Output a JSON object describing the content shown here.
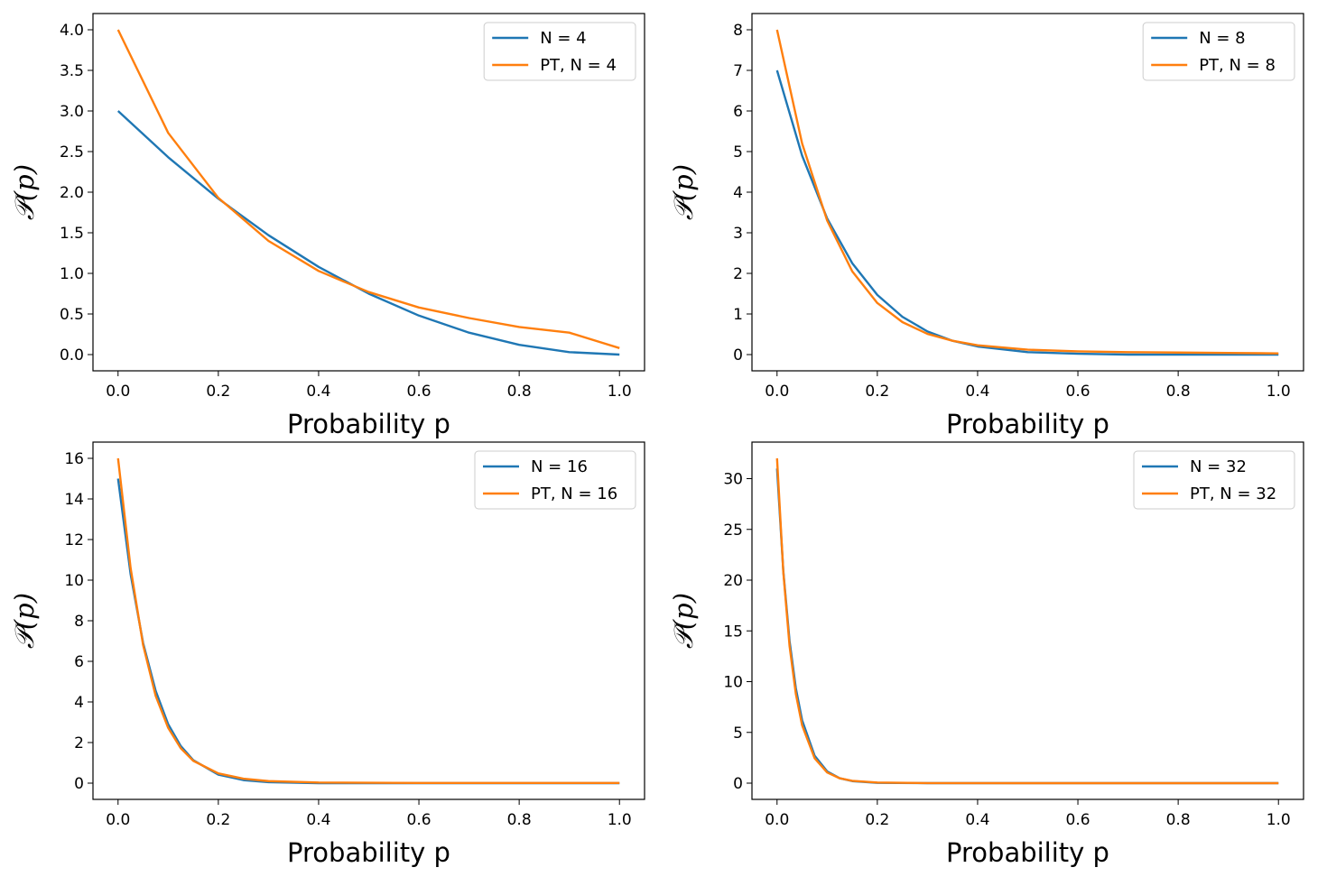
{
  "chart_data": [
    {
      "type": "line",
      "title": "",
      "xlabel": "Probability p",
      "ylabel": "𝒫(p)",
      "xlim": [
        -0.05,
        1.05
      ],
      "ylim": [
        -0.2,
        4.2
      ],
      "xticks": [
        0.0,
        0.2,
        0.4,
        0.6,
        0.8,
        1.0
      ],
      "xtick_labels": [
        "0.0",
        "0.2",
        "0.4",
        "0.6",
        "0.8",
        "1.0"
      ],
      "yticks": [
        0.0,
        0.5,
        1.0,
        1.5,
        2.0,
        2.5,
        3.0,
        3.5,
        4.0
      ],
      "ytick_labels": [
        "0.0",
        "0.5",
        "1.0",
        "1.5",
        "2.0",
        "2.5",
        "3.0",
        "3.5",
        "4.0"
      ],
      "grid": false,
      "legend_position": "top-right",
      "x": [
        0.0,
        0.1,
        0.2,
        0.3,
        0.4,
        0.5,
        0.6,
        0.7,
        0.8,
        0.9,
        1.0
      ],
      "series": [
        {
          "name": "N = 4",
          "color": "#1f77b4",
          "values": [
            3.0,
            2.43,
            1.92,
            1.47,
            1.08,
            0.75,
            0.48,
            0.27,
            0.12,
            0.03,
            0.0
          ]
        },
        {
          "name": "PT, N = 4",
          "color": "#ff7f0e",
          "values": [
            4.0,
            2.73,
            1.93,
            1.4,
            1.03,
            0.77,
            0.58,
            0.45,
            0.34,
            0.27,
            0.08
          ]
        }
      ]
    },
    {
      "type": "line",
      "title": "",
      "xlabel": "Probability p",
      "ylabel": "𝒫(p)",
      "xlim": [
        -0.05,
        1.05
      ],
      "ylim": [
        -0.4,
        8.4
      ],
      "xticks": [
        0.0,
        0.2,
        0.4,
        0.6,
        0.8,
        1.0
      ],
      "xtick_labels": [
        "0.0",
        "0.2",
        "0.4",
        "0.6",
        "0.8",
        "1.0"
      ],
      "yticks": [
        0,
        1,
        2,
        3,
        4,
        5,
        6,
        7,
        8
      ],
      "ytick_labels": [
        "0",
        "1",
        "2",
        "3",
        "4",
        "5",
        "6",
        "7",
        "8"
      ],
      "grid": false,
      "legend_position": "top-right",
      "x": [
        0.0,
        0.05,
        0.1,
        0.15,
        0.2,
        0.25,
        0.3,
        0.35,
        0.4,
        0.5,
        0.6,
        0.7,
        0.8,
        0.9,
        1.0
      ],
      "series": [
        {
          "name": "N = 8",
          "color": "#1f77b4",
          "values": [
            7.0,
            4.9,
            3.35,
            2.25,
            1.47,
            0.93,
            0.57,
            0.34,
            0.2,
            0.06,
            0.02,
            0.0,
            0.0,
            0.0,
            0.0
          ]
        },
        {
          "name": "PT, N = 8",
          "color": "#ff7f0e",
          "values": [
            8.0,
            5.2,
            3.3,
            2.05,
            1.27,
            0.8,
            0.51,
            0.34,
            0.23,
            0.12,
            0.08,
            0.06,
            0.05,
            0.04,
            0.03
          ]
        }
      ]
    },
    {
      "type": "line",
      "title": "",
      "xlabel": "Probability p",
      "ylabel": "𝒫(p)",
      "xlim": [
        -0.05,
        1.05
      ],
      "ylim": [
        -0.8,
        16.8
      ],
      "xticks": [
        0.0,
        0.2,
        0.4,
        0.6,
        0.8,
        1.0
      ],
      "xtick_labels": [
        "0.0",
        "0.2",
        "0.4",
        "0.6",
        "0.8",
        "1.0"
      ],
      "yticks": [
        0,
        2,
        4,
        6,
        8,
        10,
        12,
        14,
        16
      ],
      "ytick_labels": [
        "0",
        "2",
        "4",
        "6",
        "8",
        "10",
        "12",
        "14",
        "16"
      ],
      "grid": false,
      "legend_position": "top-right",
      "x": [
        0.0,
        0.025,
        0.05,
        0.075,
        0.1,
        0.125,
        0.15,
        0.2,
        0.25,
        0.3,
        0.4,
        0.5,
        0.6,
        0.8,
        1.0
      ],
      "series": [
        {
          "name": "N = 16",
          "color": "#1f77b4",
          "values": [
            15.0,
            10.3,
            6.9,
            4.55,
            2.9,
            1.83,
            1.13,
            0.42,
            0.15,
            0.05,
            0.0,
            0.0,
            0.0,
            0.0,
            0.0
          ]
        },
        {
          "name": "PT, N = 16",
          "color": "#ff7f0e",
          "values": [
            16.0,
            10.6,
            6.8,
            4.3,
            2.72,
            1.72,
            1.1,
            0.48,
            0.22,
            0.1,
            0.03,
            0.02,
            0.01,
            0.01,
            0.01
          ]
        }
      ]
    },
    {
      "type": "line",
      "title": "",
      "xlabel": "Probability p",
      "ylabel": "𝒫(p)",
      "xlim": [
        -0.05,
        1.05
      ],
      "ylim": [
        -1.6,
        33.6
      ],
      "xticks": [
        0.0,
        0.2,
        0.4,
        0.6,
        0.8,
        1.0
      ],
      "xtick_labels": [
        "0.0",
        "0.2",
        "0.4",
        "0.6",
        "0.8",
        "1.0"
      ],
      "yticks": [
        0,
        5,
        10,
        15,
        20,
        25,
        30
      ],
      "ytick_labels": [
        "0",
        "5",
        "10",
        "15",
        "20",
        "25",
        "30"
      ],
      "grid": false,
      "legend_position": "top-right",
      "x": [
        0.0,
        0.0125,
        0.025,
        0.0375,
        0.05,
        0.075,
        0.1,
        0.125,
        0.15,
        0.2,
        0.3,
        0.5,
        1.0
      ],
      "series": [
        {
          "name": "N = 32",
          "color": "#1f77b4",
          "values": [
            31.0,
            20.9,
            14.0,
            9.35,
            6.2,
            2.7,
            1.15,
            0.48,
            0.2,
            0.03,
            0.0,
            0.0,
            0.0
          ]
        },
        {
          "name": "PT, N = 32",
          "color": "#ff7f0e",
          "values": [
            32.0,
            20.8,
            13.5,
            8.8,
            5.7,
            2.45,
            1.05,
            0.48,
            0.23,
            0.06,
            0.01,
            0.0,
            0.0
          ]
        }
      ]
    }
  ]
}
